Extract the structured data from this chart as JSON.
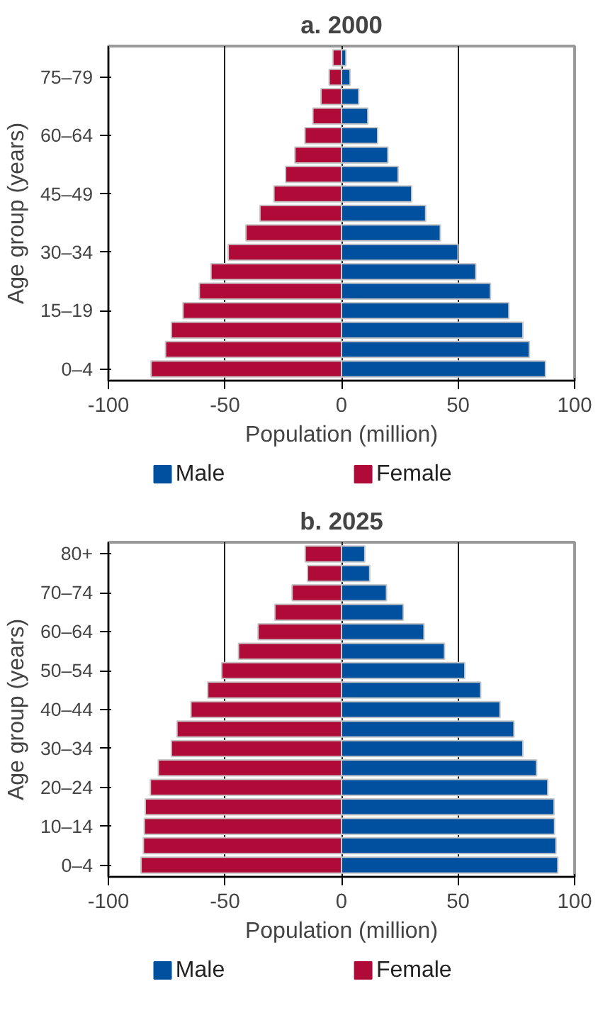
{
  "chart_data": [
    {
      "type": "bar",
      "orientation": "horizontal",
      "stacked": true,
      "title": "a. 2000",
      "xlabel": "Population (million)",
      "ylabel": "Age group (years)",
      "categories": [
        null,
        "75–79",
        null,
        null,
        "60–64",
        null,
        null,
        "45–49",
        null,
        null,
        "30–34",
        null,
        null,
        "15–19",
        null,
        null,
        "0–4"
      ],
      "series": [
        {
          "name": "Male",
          "color": "#0050a0",
          "values": [
            1.9,
            3.7,
            7.4,
            11.3,
            15.5,
            19.9,
            24.3,
            30.1,
            36.1,
            42.4,
            50,
            57.6,
            63.9,
            71.8,
            77.8,
            80.6,
            87.5
          ]
        },
        {
          "name": "Female",
          "color": "#b00a38",
          "values": [
            -3.7,
            -5.3,
            -8.8,
            -12.3,
            -15.7,
            -20,
            -24,
            -29,
            -35,
            -41,
            -48.6,
            -56,
            -61,
            -68,
            -73,
            -75.5,
            -81.7
          ]
        }
      ],
      "xlim": [
        -100,
        100
      ],
      "xticks": [
        -100,
        -50,
        0,
        50,
        100
      ],
      "grid": "x",
      "legend": "bottom"
    },
    {
      "type": "bar",
      "orientation": "horizontal",
      "stacked": true,
      "title": "b. 2025",
      "xlabel": "Population (million)",
      "ylabel": "Age group (years)",
      "categories": [
        "80+",
        null,
        "70–74",
        null,
        "60–64",
        null,
        "50–54",
        null,
        "40–44",
        null,
        "30–34",
        null,
        "20–24",
        null,
        "10–14",
        null,
        "0–4"
      ],
      "series": [
        {
          "name": "Male",
          "color": "#0050a0",
          "values": [
            10,
            12.1,
            19.3,
            26.5,
            35.4,
            44.2,
            52.9,
            59.7,
            68,
            74,
            77.8,
            83.7,
            88.5,
            91.2,
            91.4,
            92,
            92.8
          ]
        },
        {
          "name": "Female",
          "color": "#b00a38",
          "values": [
            -15.6,
            -14.6,
            -21.2,
            -28.6,
            -35.8,
            -44.2,
            -51.4,
            -57.4,
            -64.6,
            -70.6,
            -73,
            -78.6,
            -82,
            -84.2,
            -84.6,
            -85,
            -86
          ]
        }
      ],
      "xlim": [
        -100,
        100
      ],
      "xticks": [
        -100,
        -50,
        0,
        50,
        100
      ],
      "grid": "x",
      "legend": "bottom"
    }
  ]
}
